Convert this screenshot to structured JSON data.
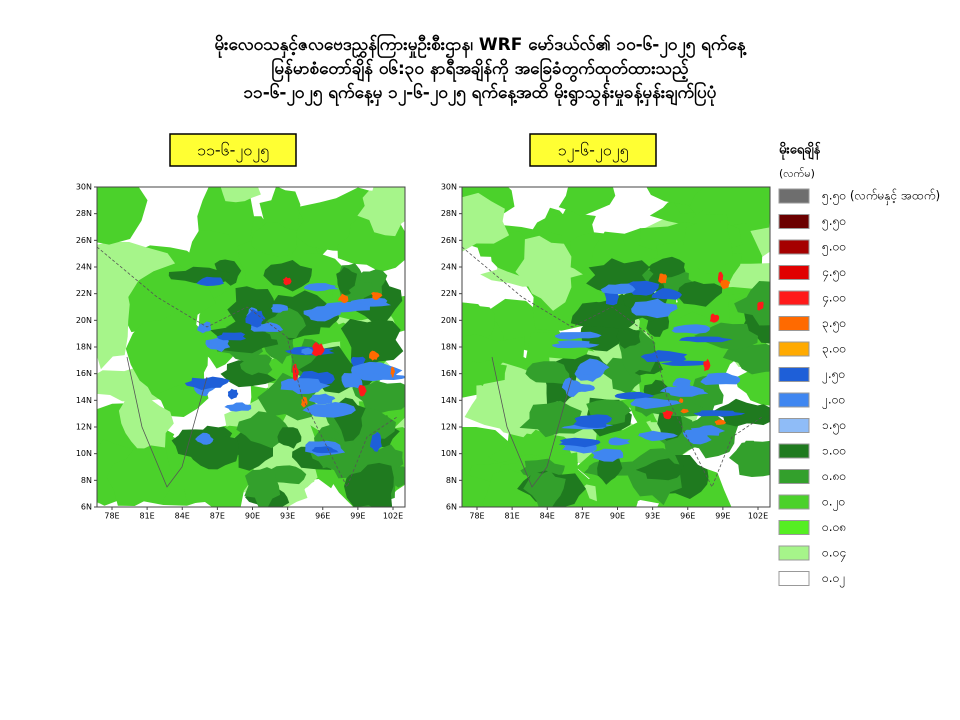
{
  "header": {
    "lines": [
      "မိုးလေဝသနှင့်ဇလဗေဒညွှန်ကြားမှုဦးစီးဌာန၊ WRF မော်ဒယ်လ်၏ ၁၀-၆-၂၀၂၅ ရက်နေ့",
      "မြန်မာစံတော်ချိန် ၀၆:၃၀ နာရီအချိန်ကို အခြေခံတွက်ထုတ်ထားသည့်",
      "၁၁-၆-၂၀၂၅ ရက်နေ့မှ ၁၂-၆-၂၀၂၅ ရက်နေ့အထိ မိုးရွာသွန်းမှုခန့်မှန်းချက်ပြပုံ"
    ]
  },
  "maps": [
    {
      "label": "၁၁-၆-၂၀၂၅"
    },
    {
      "label": "၁၂-၆-၂၀၂၅"
    }
  ],
  "lat_ticks": [
    "30N",
    "28N",
    "26N",
    "24N",
    "22N",
    "20N",
    "18N",
    "16N",
    "14N",
    "12N",
    "10N",
    "8N",
    "6N"
  ],
  "lon_ticks": [
    "78E",
    "81E",
    "84E",
    "87E",
    "90E",
    "93E",
    "96E",
    "99E",
    "102E"
  ],
  "legend": {
    "title": "မိုးရေချိန်",
    "unit": "(လက်မ)",
    "entries": [
      {
        "label": "၅.၅၀ (လက်မနှင့် အထက်)",
        "color": "#6e6e6e"
      },
      {
        "label": "၅.၅၀",
        "color": "#6b0000"
      },
      {
        "label": "၅.၀၀",
        "color": "#a50000"
      },
      {
        "label": "၄.၅၀",
        "color": "#e00000"
      },
      {
        "label": "၄.၀၀",
        "color": "#ff1a1a"
      },
      {
        "label": "၃.၅၀",
        "color": "#ff6a00"
      },
      {
        "label": "၃.၀၀",
        "color": "#ffaa00"
      },
      {
        "label": "၂.၅၀",
        "color": "#1e5fd8"
      },
      {
        "label": "၂.၀၀",
        "color": "#3f86f0"
      },
      {
        "label": "၁.၅၀",
        "color": "#8fbcf7"
      },
      {
        "label": "၁.၀၀",
        "color": "#1f7a1f"
      },
      {
        "label": "၀.၈၀",
        "color": "#33a02c"
      },
      {
        "label": "၀.၂၀",
        "color": "#4bd12b"
      },
      {
        "label": "၀.၀၈",
        "color": "#55ee22"
      },
      {
        "label": "၀.၀၄",
        "color": "#a6f58a"
      },
      {
        "label": "၀.၀၂",
        "color": "#ffffff"
      }
    ]
  }
}
